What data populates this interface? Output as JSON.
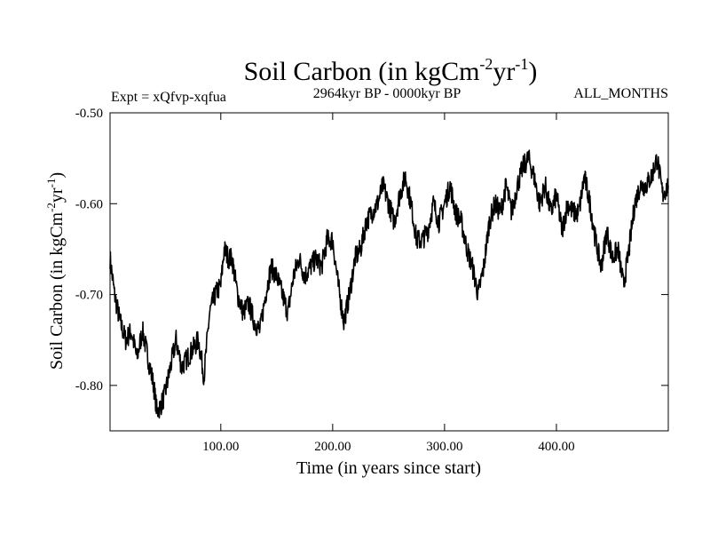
{
  "chart_data": {
    "type": "line",
    "title": "Soil Carbon (in kgCm",
    "title_sup1": "-2",
    "title_mid": "yr",
    "title_sup2": "-1",
    "title_end": ")",
    "subtitle_left": "Expt = xQfvp-xqfua",
    "subtitle_center": "2964kyr BP - 0000kyr BP",
    "subtitle_right": "ALL_MONTHS",
    "xlabel": "Time (in years since start)",
    "ylabel": "Soil Carbon (in kgCm",
    "ylabel_sup1": "-2",
    "ylabel_mid": "yr",
    "ylabel_sup2": "-1",
    "ylabel_end": ")",
    "xlim": [
      1,
      500
    ],
    "ylim": [
      -0.85,
      -0.5
    ],
    "x_ticks": [
      100,
      200,
      300,
      400
    ],
    "x_tick_labels": [
      "100.00",
      "200.00",
      "300.00",
      "400.00"
    ],
    "y_ticks": [
      -0.5,
      -0.6,
      -0.7,
      -0.8
    ],
    "y_tick_labels": [
      "-0.50",
      "-0.60",
      "-0.70",
      "-0.80"
    ],
    "series": [
      {
        "name": "Soil Carbon",
        "color": "#000000",
        "x": [
          1,
          5,
          10,
          15,
          20,
          25,
          30,
          35,
          40,
          43,
          47,
          50,
          55,
          60,
          65,
          70,
          75,
          80,
          85,
          90,
          95,
          100,
          103,
          107,
          110,
          115,
          120,
          125,
          130,
          135,
          140,
          145,
          150,
          155,
          160,
          165,
          170,
          175,
          180,
          185,
          190,
          195,
          200,
          205,
          210,
          215,
          220,
          225,
          230,
          235,
          240,
          245,
          250,
          255,
          260,
          265,
          270,
          275,
          280,
          285,
          290,
          295,
          300,
          305,
          310,
          315,
          320,
          325,
          330,
          335,
          340,
          345,
          350,
          355,
          360,
          365,
          370,
          375,
          380,
          385,
          390,
          395,
          400,
          405,
          410,
          415,
          420,
          425,
          430,
          435,
          440,
          445,
          450,
          455,
          460,
          465,
          470,
          475,
          480,
          485,
          490,
          495,
          500
        ],
        "y": [
          -0.66,
          -0.7,
          -0.73,
          -0.75,
          -0.74,
          -0.77,
          -0.74,
          -0.77,
          -0.8,
          -0.83,
          -0.82,
          -0.81,
          -0.78,
          -0.75,
          -0.78,
          -0.77,
          -0.76,
          -0.75,
          -0.79,
          -0.72,
          -0.7,
          -0.69,
          -0.65,
          -0.66,
          -0.66,
          -0.7,
          -0.72,
          -0.71,
          -0.73,
          -0.74,
          -0.7,
          -0.67,
          -0.68,
          -0.7,
          -0.72,
          -0.68,
          -0.66,
          -0.68,
          -0.67,
          -0.66,
          -0.67,
          -0.64,
          -0.64,
          -0.69,
          -0.73,
          -0.7,
          -0.66,
          -0.65,
          -0.62,
          -0.61,
          -0.6,
          -0.58,
          -0.6,
          -0.62,
          -0.59,
          -0.57,
          -0.6,
          -0.64,
          -0.64,
          -0.63,
          -0.6,
          -0.62,
          -0.6,
          -0.58,
          -0.61,
          -0.62,
          -0.65,
          -0.67,
          -0.7,
          -0.67,
          -0.62,
          -0.6,
          -0.61,
          -0.58,
          -0.61,
          -0.58,
          -0.56,
          -0.55,
          -0.57,
          -0.6,
          -0.58,
          -0.61,
          -0.59,
          -0.63,
          -0.6,
          -0.61,
          -0.61,
          -0.57,
          -0.6,
          -0.64,
          -0.67,
          -0.63,
          -0.66,
          -0.65,
          -0.69,
          -0.65,
          -0.6,
          -0.58,
          -0.58,
          -0.57,
          -0.55,
          -0.59,
          -0.58
        ]
      }
    ]
  }
}
